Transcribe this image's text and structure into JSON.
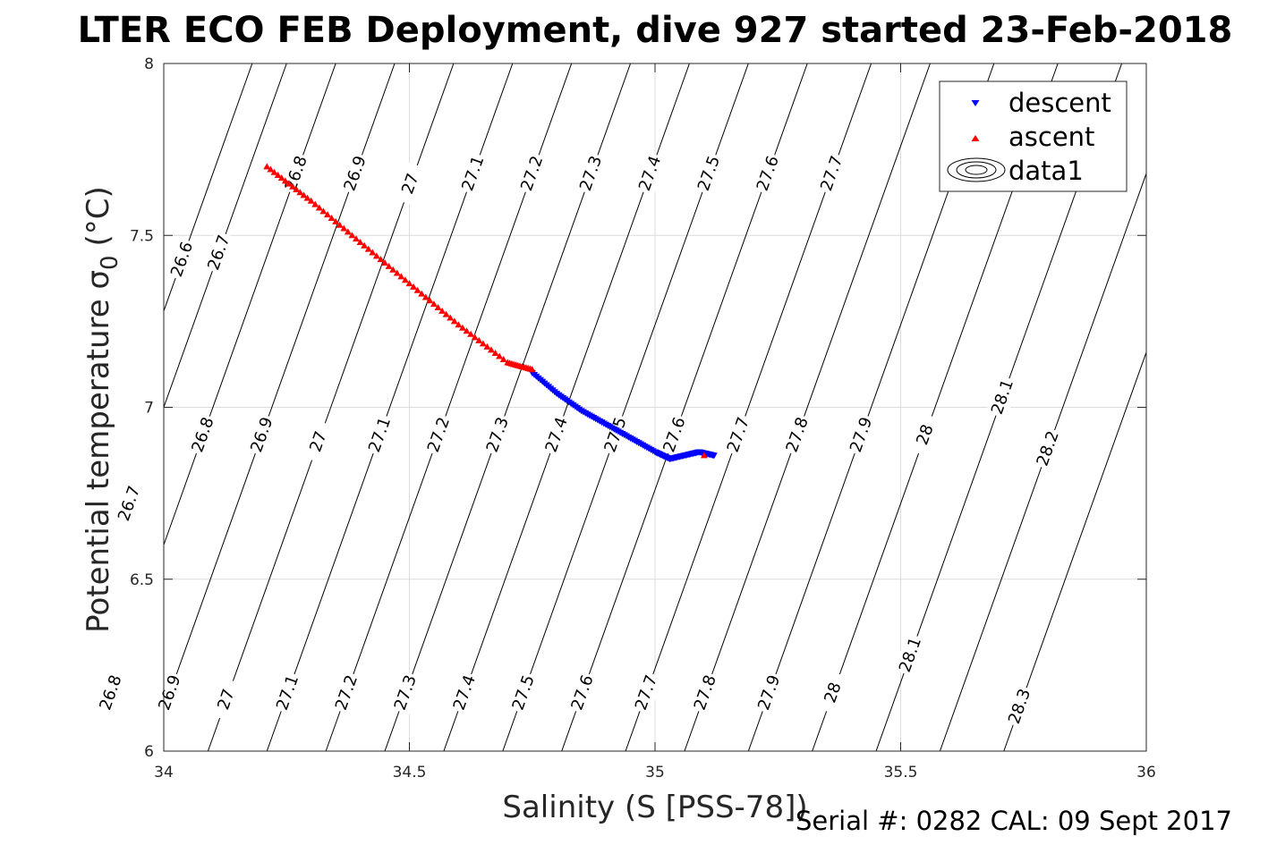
{
  "chart_data": {
    "type": "scatter",
    "title": "LTER ECO FEB Deployment, dive 927 started 23-Feb-2018",
    "xlabel": "Salinity (S [PSS-78])",
    "ylabel_main": "Potential temperature σ",
    "ylabel_sub": "0",
    "ylabel_unit": "(°C)",
    "xlim": [
      34,
      36
    ],
    "ylim": [
      6,
      8
    ],
    "xticks": [
      34,
      34.5,
      35,
      35.5,
      36
    ],
    "yticks": [
      6,
      6.5,
      7,
      7.5,
      8
    ],
    "xtick_labels": [
      "34",
      "34.5",
      "35",
      "35.5",
      "36"
    ],
    "ytick_labels": [
      "6",
      "6.5",
      "7",
      "7.5",
      "8"
    ],
    "grid": true,
    "legend_position": "top-right",
    "legend": [
      "descent",
      "ascent",
      "data1"
    ],
    "colors": {
      "descent": "#0000ff",
      "ascent": "#ff0000",
      "contour": "#000000"
    },
    "series": [
      {
        "name": "descent",
        "marker": "triangle-down",
        "x": [
          34.75,
          34.8,
          34.85,
          34.9,
          34.95,
          35.0,
          35.03,
          35.06,
          35.09,
          35.12
        ],
        "y": [
          7.1,
          7.04,
          6.99,
          6.95,
          6.91,
          6.87,
          6.85,
          6.86,
          6.87,
          6.86
        ]
      },
      {
        "name": "ascent",
        "marker": "triangle-up",
        "x": [
          34.21,
          34.3,
          34.4,
          34.5,
          34.6,
          34.7,
          34.75,
          35.1
        ],
        "y": [
          7.7,
          7.6,
          7.48,
          7.36,
          7.24,
          7.13,
          7.11,
          6.86
        ]
      }
    ],
    "contours": [
      {
        "level": "26.6",
        "s7": 33.93,
        "labels": [
          {
            "y": 7.43
          }
        ]
      },
      {
        "level": "26.7",
        "s7": 34.0,
        "labels": [
          {
            "y": 7.45
          },
          {
            "y": 6.72
          }
        ]
      },
      {
        "level": "26.8",
        "s7": 34.1,
        "labels": [
          {
            "y": 7.68
          },
          {
            "y": 6.92
          },
          {
            "y": 6.17
          }
        ]
      },
      {
        "level": "26.9",
        "s7": 34.22,
        "labels": [
          {
            "y": 7.68
          },
          {
            "y": 6.92
          },
          {
            "y": 6.17
          }
        ]
      },
      {
        "level": "27",
        "s7": 34.34,
        "labels": [
          {
            "y": 7.65
          },
          {
            "y": 6.9
          },
          {
            "y": 6.15
          }
        ]
      },
      {
        "level": "27.1",
        "s7": 34.46,
        "labels": [
          {
            "y": 7.68
          },
          {
            "y": 6.92
          },
          {
            "y": 6.17
          }
        ]
      },
      {
        "level": "27.2",
        "s7": 34.58,
        "labels": [
          {
            "y": 7.68
          },
          {
            "y": 6.92
          },
          {
            "y": 6.17
          }
        ]
      },
      {
        "level": "27.3",
        "s7": 34.7,
        "labels": [
          {
            "y": 7.68
          },
          {
            "y": 6.92
          },
          {
            "y": 6.17
          }
        ]
      },
      {
        "level": "27.4",
        "s7": 34.82,
        "labels": [
          {
            "y": 7.68
          },
          {
            "y": 6.92
          },
          {
            "y": 6.17
          }
        ]
      },
      {
        "level": "27.5",
        "s7": 34.94,
        "labels": [
          {
            "y": 7.68
          },
          {
            "y": 6.92
          },
          {
            "y": 6.17
          }
        ]
      },
      {
        "level": "27.6",
        "s7": 35.06,
        "labels": [
          {
            "y": 7.68
          },
          {
            "y": 6.92
          },
          {
            "y": 6.17
          }
        ]
      },
      {
        "level": "27.7",
        "s7": 35.19,
        "labels": [
          {
            "y": 7.68
          },
          {
            "y": 6.92
          },
          {
            "y": 6.17
          }
        ]
      },
      {
        "level": "27.8",
        "s7": 35.31,
        "labels": [
          {
            "y": 6.92
          },
          {
            "y": 6.17
          }
        ]
      },
      {
        "level": "27.9",
        "s7": 35.44,
        "labels": [
          {
            "y": 6.92
          },
          {
            "y": 6.17
          }
        ]
      },
      {
        "level": "28",
        "s7": 35.57,
        "labels": [
          {
            "y": 6.92
          },
          {
            "y": 6.17
          }
        ]
      },
      {
        "level": "28.1",
        "s7": 35.7,
        "labels": [
          {
            "y": 7.03
          },
          {
            "y": 6.28
          }
        ]
      },
      {
        "level": "28.2",
        "s7": 35.83,
        "labels": [
          {
            "y": 6.88
          }
        ]
      },
      {
        "level": "28.3",
        "s7": 35.96,
        "labels": [
          {
            "y": 6.13
          }
        ]
      }
    ]
  },
  "footer": {
    "serial": "Serial #: 0282  CAL: 09 Sept 2017"
  }
}
